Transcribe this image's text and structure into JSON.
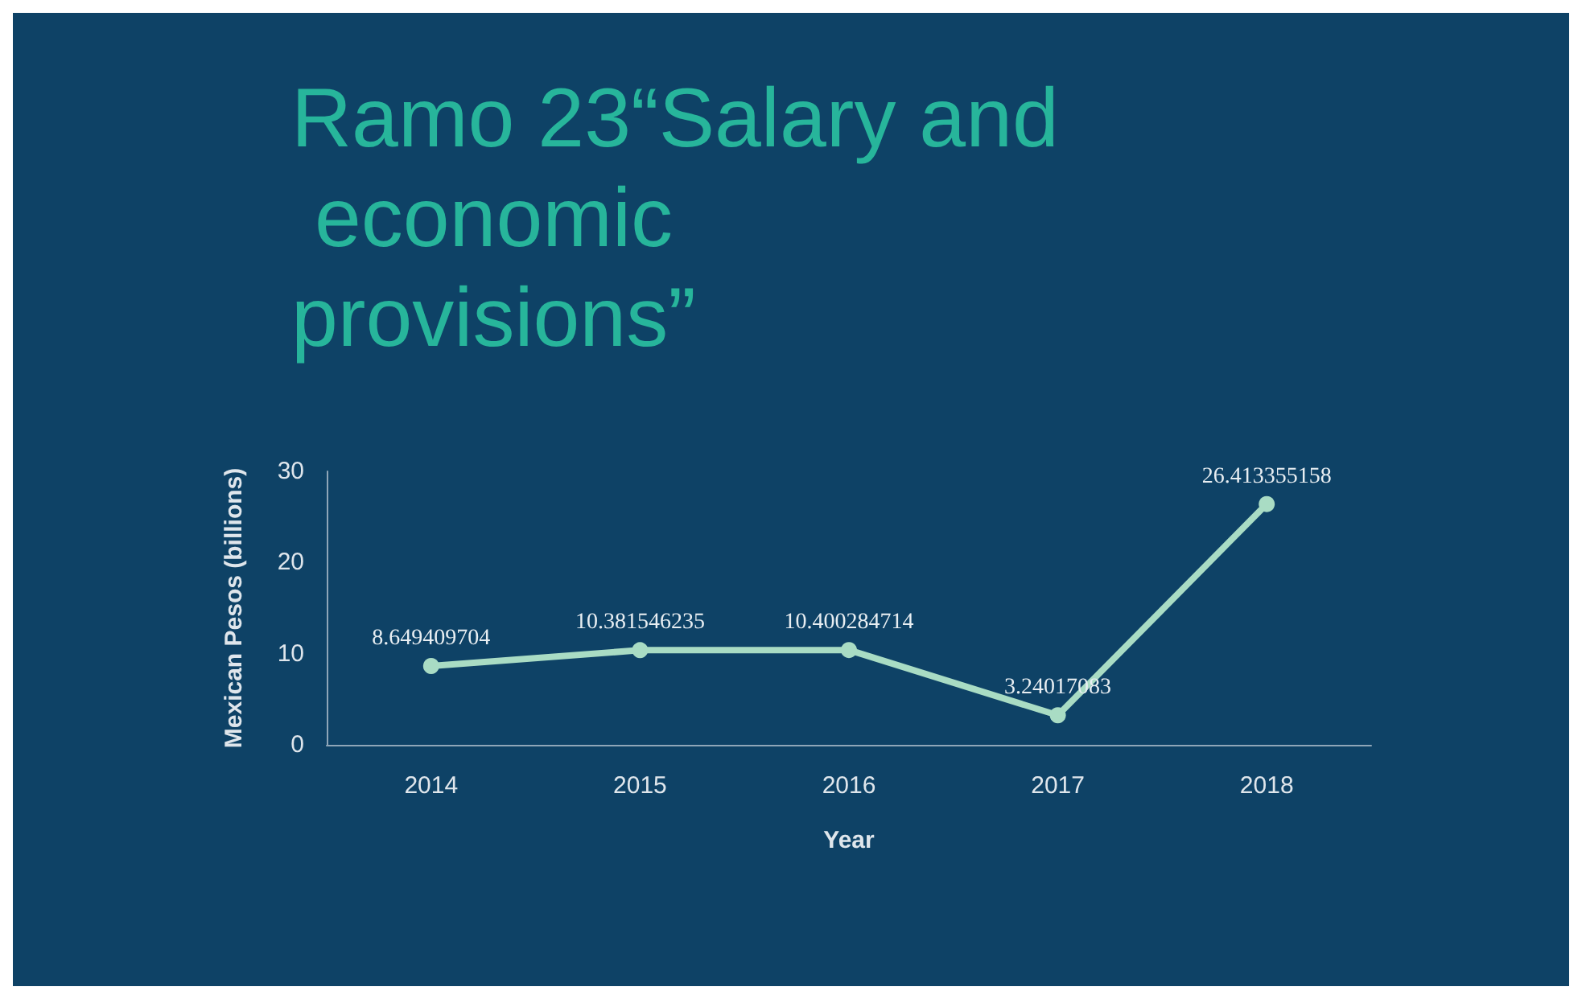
{
  "chart_data": {
    "type": "line",
    "title": "Ramo 23“Salary and economic provisions”",
    "xlabel": "Year",
    "ylabel": "Mexican Pesos (billions)",
    "categories": [
      "2014",
      "2015",
      "2016",
      "2017",
      "2018"
    ],
    "series": [
      {
        "color": "#a9dcc4",
        "values": [
          8.649409704,
          10.381546235,
          10.400284714,
          3.24017083,
          26.413355158
        ]
      }
    ],
    "ylim": [
      0,
      30
    ],
    "yticks": [
      0,
      10,
      20,
      30
    ],
    "grid": false,
    "marker": "circle",
    "line_style": "solid",
    "data_labels": true
  }
}
